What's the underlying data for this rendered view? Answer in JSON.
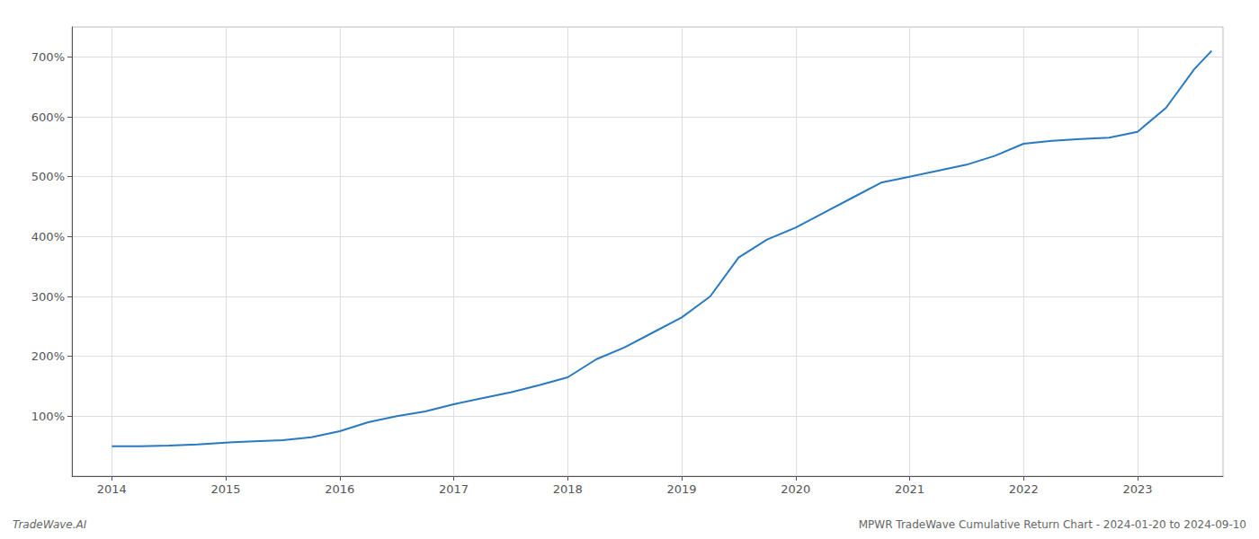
{
  "chart_data": {
    "type": "line",
    "annotations": [
      "TradeWave.AI",
      "MPWR TradeWave Cumulative Return Chart - 2024-01-20 to 2024-09-10"
    ],
    "x": [
      2014.0,
      2014.25,
      2014.5,
      2014.75,
      2015.0,
      2015.25,
      2015.5,
      2015.75,
      2016.0,
      2016.25,
      2016.5,
      2016.75,
      2017.0,
      2017.25,
      2017.5,
      2017.75,
      2018.0,
      2018.25,
      2018.5,
      2018.75,
      2019.0,
      2019.25,
      2019.5,
      2019.75,
      2020.0,
      2020.25,
      2020.5,
      2020.75,
      2021.0,
      2021.25,
      2021.5,
      2021.75,
      2022.0,
      2022.25,
      2022.5,
      2022.75,
      2023.0,
      2023.25,
      2023.5,
      2023.65
    ],
    "values": [
      50,
      50,
      51,
      53,
      56,
      58,
      60,
      65,
      75,
      90,
      100,
      108,
      120,
      130,
      140,
      152,
      165,
      195,
      215,
      240,
      265,
      300,
      365,
      395,
      415,
      440,
      465,
      490,
      500,
      510,
      520,
      535,
      555,
      560,
      563,
      565,
      575,
      615,
      680,
      710
    ],
    "color": "#2979c0",
    "xlim": [
      2013.65,
      2023.75
    ],
    "xticks": [
      2014,
      2015,
      2016,
      2017,
      2018,
      2019,
      2020,
      2021,
      2022,
      2023
    ],
    "ylim": [
      0,
      750
    ],
    "yticks": [
      {
        "value": 100,
        "label": "100%"
      },
      {
        "value": 200,
        "label": "200%"
      },
      {
        "value": 300,
        "label": "300%"
      },
      {
        "value": 400,
        "label": "400%"
      },
      {
        "value": 500,
        "label": "500%"
      },
      {
        "value": 600,
        "label": "600%"
      },
      {
        "value": 700,
        "label": "700%"
      }
    ],
    "grid": true
  }
}
